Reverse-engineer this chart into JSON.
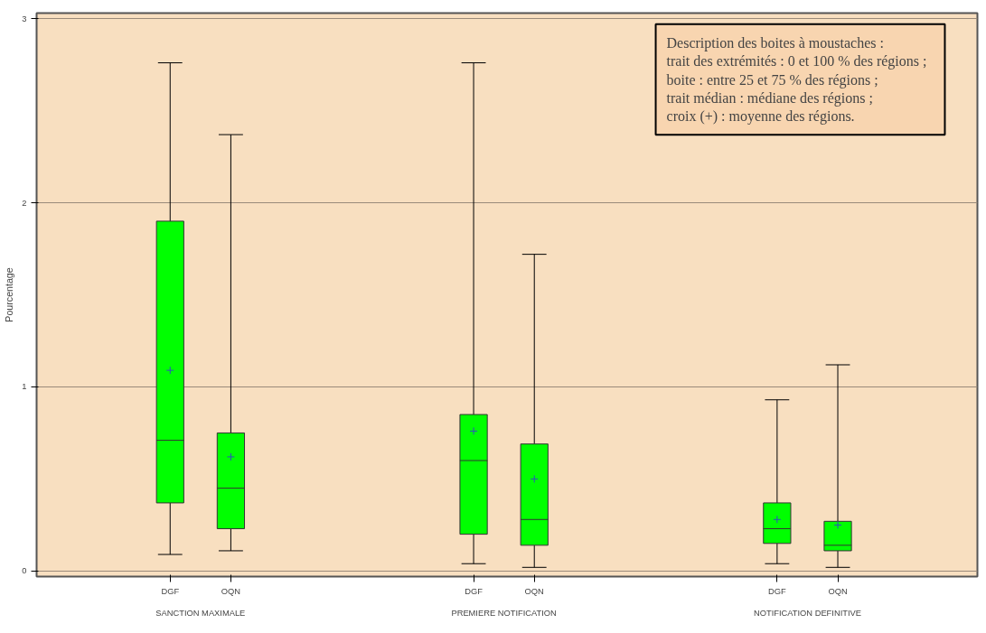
{
  "chart_data": {
    "type": "box",
    "ylabel": "Pourcentage",
    "categories": [
      "DGF",
      "OQN",
      "DGF",
      "OQN",
      "DGF",
      "OQN"
    ],
    "boxes": [
      {
        "low": 0.09,
        "q1": 0.37,
        "median": 0.71,
        "q3": 1.9,
        "high": 2.76,
        "mean": 1.09
      },
      {
        "low": 0.11,
        "q1": 0.23,
        "median": 0.45,
        "q3": 0.75,
        "high": 2.37,
        "mean": 0.62
      },
      {
        "low": 0.04,
        "q1": 0.2,
        "median": 0.6,
        "q3": 0.85,
        "high": 2.76,
        "mean": 0.76
      },
      {
        "low": 0.02,
        "q1": 0.14,
        "median": 0.28,
        "q3": 0.69,
        "high": 1.72,
        "mean": 0.5
      },
      {
        "low": 0.04,
        "q1": 0.15,
        "median": 0.23,
        "q3": 0.37,
        "high": 0.93,
        "mean": 0.28
      },
      {
        "low": 0.02,
        "q1": 0.11,
        "median": 0.14,
        "q3": 0.27,
        "high": 1.12,
        "mean": 0.25
      }
    ],
    "color": "#00ff00",
    "ylim": [
      -0.03,
      3.03
    ],
    "yticks": [
      0,
      1,
      2,
      3
    ],
    "grid": "y",
    "annotations": [
      "SANCTION MAXIMALE",
      "PREMIERE NOTIFICATION",
      "NOTIFICATION DEFINITIVE",
      "Description des boites à moustaches :\n  trait des extrémités : 0 et 100 % des régions ;\n  boite : entre 25 et 75 % des régions ;\n  trait médian : médiane des régions ;\n  croix (+) : moyenne des régions."
    ]
  }
}
